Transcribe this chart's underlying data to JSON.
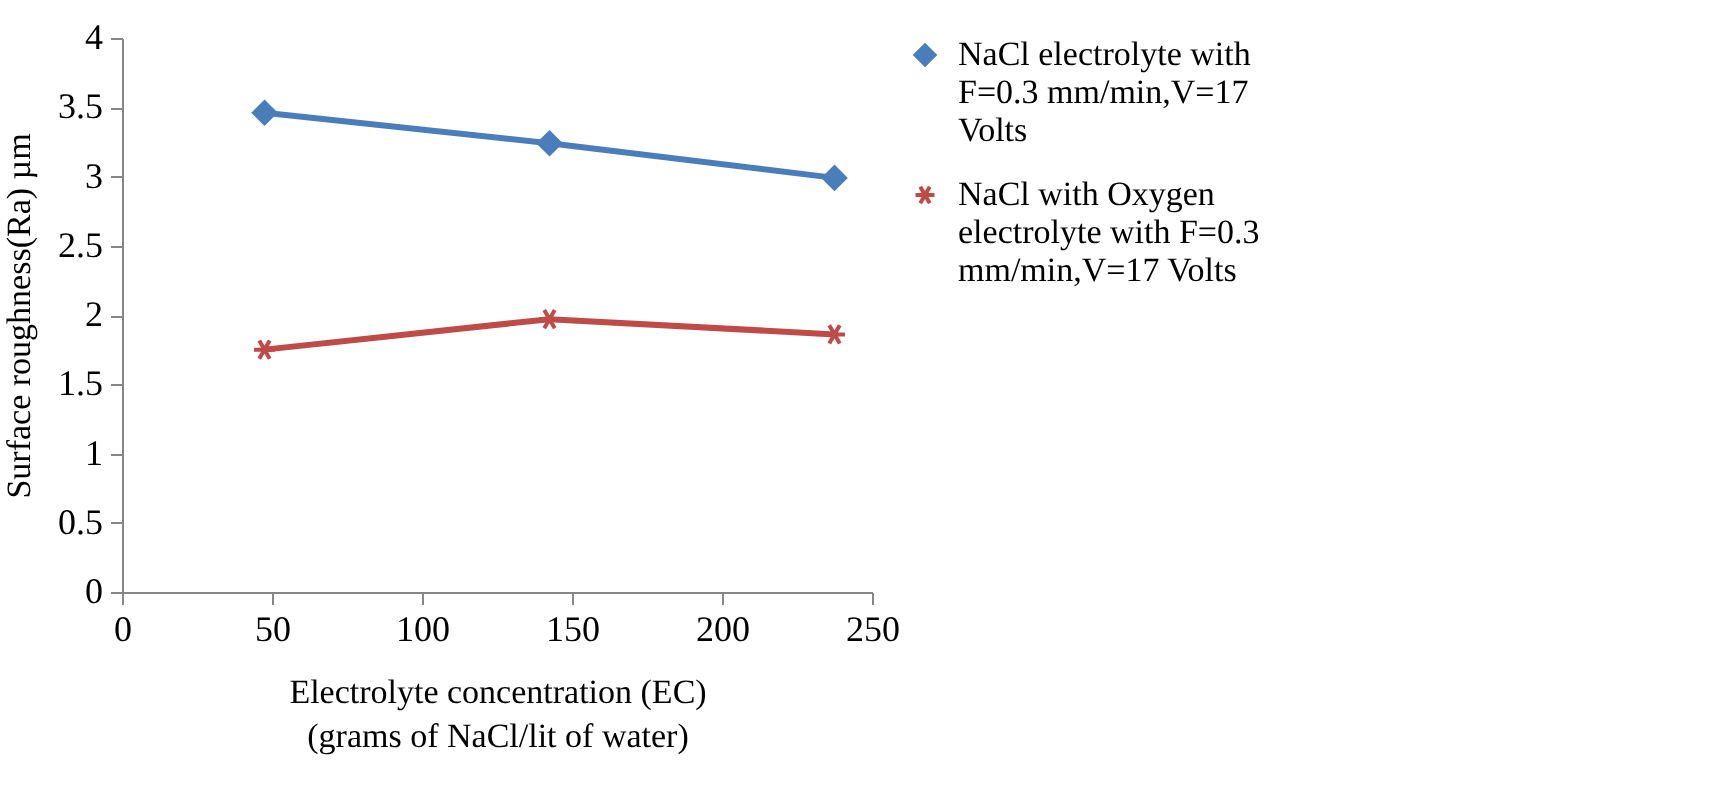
{
  "chart_data": {
    "type": "line",
    "xlabel": "Electrolyte concentration (EC)\n(grams of NaCl/lit of water)",
    "ylabel": "Surface roughness(Ra) µm",
    "x": [
      47.5,
      142.5,
      237.5
    ],
    "series": [
      {
        "name": "NaCl electrolyte with F=0.3 mm/min,V=17 Volts",
        "color": "#4a7ebb",
        "marker": "diamond",
        "values": [
          3.46,
          3.24,
          2.99
        ]
      },
      {
        "name": "NaCl with Oxygen electrolyte with F=0.3 mm/min,V=17 Volts",
        "color": "#be4b48",
        "marker": "cross",
        "values": [
          1.75,
          1.97,
          1.86
        ]
      }
    ],
    "xlim": [
      0,
      250
    ],
    "xticks": [
      0,
      50,
      100,
      150,
      200,
      250
    ],
    "ylim": [
      0,
      4
    ],
    "yticks": [
      0,
      0.5,
      1,
      1.5,
      2,
      2.5,
      3,
      3.5,
      4
    ],
    "grid": false,
    "legend": "right",
    "line_style": "solid"
  }
}
